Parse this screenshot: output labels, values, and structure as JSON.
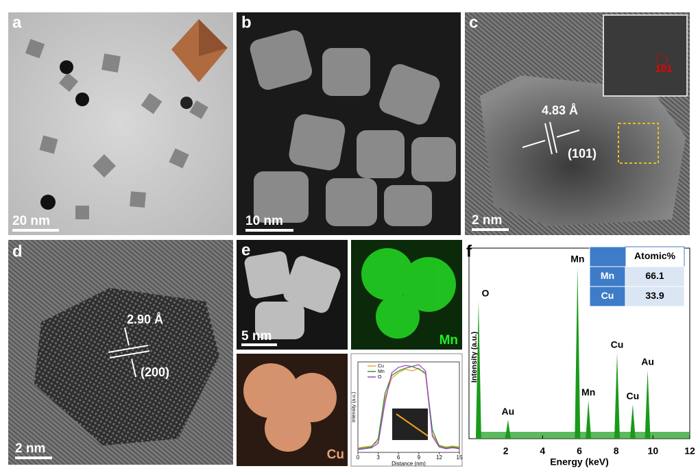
{
  "panels": {
    "a": {
      "label": "a",
      "scale_bar": "20 nm"
    },
    "b": {
      "label": "b",
      "scale_bar": "10 nm"
    },
    "c": {
      "label": "c",
      "scale_bar": "2 nm",
      "spacing": "4.83 Å",
      "plane": "(101)",
      "fft_spot": "101"
    },
    "d": {
      "label": "d",
      "scale_bar": "2 nm",
      "spacing": "2.90 Å",
      "plane": "(200)"
    },
    "e": {
      "label": "e",
      "scale_bar": "5 nm",
      "map_mn": "Mn",
      "map_cu": "Cu"
    },
    "f": {
      "label": "f"
    }
  },
  "chart_data": [
    {
      "type": "line",
      "x_label": "Distance (nm)",
      "y_label": "Intensity (a.u.)",
      "x": [
        0,
        1,
        2,
        3,
        4,
        5,
        6,
        7,
        8,
        9,
        10,
        11,
        12,
        13,
        14,
        15
      ],
      "xlim": [
        0,
        15
      ],
      "xticks": [
        0,
        3,
        6,
        9,
        12,
        15
      ],
      "ylim": [
        0,
        100
      ],
      "series": [
        {
          "name": "Cu",
          "color": "#f0a030",
          "values": [
            5,
            6,
            7,
            12,
            60,
            82,
            88,
            92,
            90,
            93,
            86,
            20,
            8,
            6,
            7,
            6
          ]
        },
        {
          "name": "Mn",
          "color": "#2a9a2a",
          "values": [
            4,
            5,
            6,
            15,
            65,
            85,
            90,
            93,
            95,
            92,
            88,
            25,
            7,
            5,
            6,
            5
          ]
        },
        {
          "name": "O",
          "color": "#a040d0",
          "values": [
            3,
            4,
            5,
            10,
            55,
            88,
            94,
            96,
            95,
            97,
            90,
            18,
            6,
            4,
            5,
            4
          ]
        }
      ]
    },
    {
      "type": "spectrum",
      "x_label": "Energy (keV)",
      "y_label": "Intensity (a.u.)",
      "xlim": [
        0,
        12
      ],
      "xticks": [
        2,
        4,
        6,
        8,
        10,
        12
      ],
      "ylim": [
        0,
        100
      ],
      "color": "#1a9a1a",
      "peaks": [
        {
          "label": "O",
          "energy": 0.52,
          "height": 72
        },
        {
          "label": "Au",
          "energy": 2.12,
          "height": 10
        },
        {
          "label": "Mn",
          "energy": 5.9,
          "height": 90
        },
        {
          "label": "Mn",
          "energy": 6.49,
          "height": 20
        },
        {
          "label": "Cu",
          "energy": 8.05,
          "height": 45
        },
        {
          "label": "Cu",
          "energy": 8.9,
          "height": 18
        },
        {
          "label": "Au",
          "energy": 9.71,
          "height": 36
        }
      ],
      "table": {
        "header": "Atomic%",
        "rows": [
          [
            "Mn",
            "66.1"
          ],
          [
            "Cu",
            "33.9"
          ]
        ]
      }
    }
  ]
}
